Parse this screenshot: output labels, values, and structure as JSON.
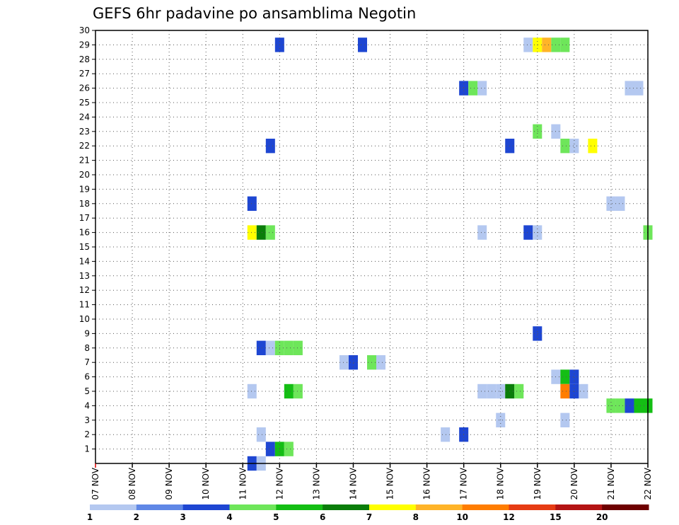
{
  "chart_data": {
    "type": "heatmap",
    "title": "GEFS 6hr padavine po ansamblima Negotin",
    "xlabel": "",
    "ylabel": "",
    "x_labels": [
      "07 NOV",
      "08 NOV",
      "09 NOV",
      "10 NOV",
      "11 NOV",
      "12 NOV",
      "13 NOV",
      "14 NOV",
      "15 NOV",
      "16 NOV",
      "17 NOV",
      "18 NOV",
      "19 NOV",
      "20 NOV",
      "21 NOV",
      "22 NOV"
    ],
    "y_ticks": [
      1,
      2,
      3,
      4,
      5,
      6,
      7,
      8,
      9,
      10,
      11,
      12,
      13,
      14,
      15,
      16,
      17,
      18,
      19,
      20,
      21,
      22,
      23,
      24,
      25,
      26,
      27,
      28,
      29,
      30
    ],
    "xlim": [
      0,
      60
    ],
    "ylim": [
      0,
      30
    ],
    "grid": true,
    "colorbar": {
      "tick_labels": [
        "1",
        "2",
        "3",
        "4",
        "5",
        "6",
        "7",
        "8",
        "10",
        "12",
        "15",
        "20"
      ],
      "colors": [
        "#b4c8f0",
        "#5f87e6",
        "#1e46d2",
        "#6ee65a",
        "#14be14",
        "#0a7d0a",
        "#ffff00",
        "#ffb428",
        "#ff7d00",
        "#e63c14",
        "#b41414",
        "#6e0000"
      ]
    },
    "cells": [
      {
        "member": 29,
        "step": 20,
        "value": 3
      },
      {
        "member": 29,
        "step": 29,
        "value": 3
      },
      {
        "member": 29,
        "step": 47,
        "value": 1.5
      },
      {
        "member": 29,
        "step": 48,
        "value": 7.5
      },
      {
        "member": 29,
        "step": 49,
        "value": 9
      },
      {
        "member": 29,
        "step": 50,
        "value": 4
      },
      {
        "member": 29,
        "step": 51,
        "value": 4
      },
      {
        "member": 26,
        "step": 40,
        "value": 3
      },
      {
        "member": 26,
        "step": 41,
        "value": 4
      },
      {
        "member": 26,
        "step": 42,
        "value": 1.5
      },
      {
        "member": 26,
        "step": 58,
        "value": 1.5
      },
      {
        "member": 26,
        "step": 59,
        "value": 1.5
      },
      {
        "member": 23,
        "step": 48,
        "value": 4
      },
      {
        "member": 23,
        "step": 50,
        "value": 1.5
      },
      {
        "member": 22,
        "step": 19,
        "value": 3
      },
      {
        "member": 22,
        "step": 45,
        "value": 3
      },
      {
        "member": 22,
        "step": 51,
        "value": 4
      },
      {
        "member": 22,
        "step": 52,
        "value": 1.5
      },
      {
        "member": 22,
        "step": 54,
        "value": 7.5
      },
      {
        "member": 18,
        "step": 17,
        "value": 3
      },
      {
        "member": 18,
        "step": 56,
        "value": 1.5
      },
      {
        "member": 18,
        "step": 57,
        "value": 1.5
      },
      {
        "member": 16,
        "step": 17,
        "value": 7.5
      },
      {
        "member": 16,
        "step": 18,
        "value": 6
      },
      {
        "member": 16,
        "step": 19,
        "value": 4
      },
      {
        "member": 16,
        "step": 42,
        "value": 1.5
      },
      {
        "member": 16,
        "step": 47,
        "value": 3
      },
      {
        "member": 16,
        "step": 48,
        "value": 1.5
      },
      {
        "member": 16,
        "step": 60,
        "value": 4
      },
      {
        "member": 9,
        "step": 48,
        "value": 3
      },
      {
        "member": 8,
        "step": 18,
        "value": 3
      },
      {
        "member": 8,
        "step": 19,
        "value": 1.5
      },
      {
        "member": 8,
        "step": 20,
        "value": 4
      },
      {
        "member": 8,
        "step": 21,
        "value": 4
      },
      {
        "member": 8,
        "step": 22,
        "value": 4
      },
      {
        "member": 7,
        "step": 27,
        "value": 1.5
      },
      {
        "member": 7,
        "step": 28,
        "value": 3
      },
      {
        "member": 7,
        "step": 30,
        "value": 4
      },
      {
        "member": 7,
        "step": 31,
        "value": 1.5
      },
      {
        "member": 6,
        "step": 50,
        "value": 1.5
      },
      {
        "member": 6,
        "step": 51,
        "value": 5.5
      },
      {
        "member": 6,
        "step": 52,
        "value": 3
      },
      {
        "member": 5,
        "step": 17,
        "value": 1.5
      },
      {
        "member": 5,
        "step": 21,
        "value": 5
      },
      {
        "member": 5,
        "step": 22,
        "value": 4
      },
      {
        "member": 5,
        "step": 42,
        "value": 1.5
      },
      {
        "member": 5,
        "step": 43,
        "value": 1.5
      },
      {
        "member": 5,
        "step": 44,
        "value": 1.5
      },
      {
        "member": 5,
        "step": 45,
        "value": 6
      },
      {
        "member": 5,
        "step": 46,
        "value": 4
      },
      {
        "member": 5,
        "step": 51,
        "value": 11
      },
      {
        "member": 5,
        "step": 52,
        "value": 3
      },
      {
        "member": 5,
        "step": 53,
        "value": 1.5
      },
      {
        "member": 4,
        "step": 56,
        "value": 4
      },
      {
        "member": 4,
        "step": 57,
        "value": 4
      },
      {
        "member": 4,
        "step": 58,
        "value": 3
      },
      {
        "member": 4,
        "step": 59,
        "value": 5
      },
      {
        "member": 4,
        "step": 60,
        "value": 5
      },
      {
        "member": 3,
        "step": 44,
        "value": 1.5
      },
      {
        "member": 3,
        "step": 51,
        "value": 1.5
      },
      {
        "member": 2,
        "step": 18,
        "value": 1.5
      },
      {
        "member": 2,
        "step": 38,
        "value": 1.5
      },
      {
        "member": 2,
        "step": 40,
        "value": 3
      },
      {
        "member": 1,
        "step": 19,
        "value": 3
      },
      {
        "member": 1,
        "step": 20,
        "value": 5.5
      },
      {
        "member": 1,
        "step": 21,
        "value": 4
      },
      {
        "member": 0,
        "step": 17,
        "value": 3
      },
      {
        "member": 0,
        "step": 18,
        "value": 1.5
      }
    ]
  }
}
